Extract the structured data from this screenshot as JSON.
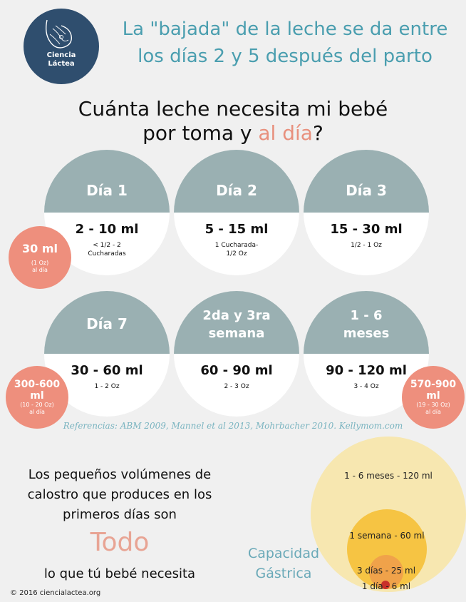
{
  "logo": {
    "line1": "Ciencia",
    "line2": "Láctea"
  },
  "headline": {
    "line1": "La \"bajada\" de la leche se da entre",
    "line2": "los días 2 y 5 después del parto"
  },
  "question": {
    "line1": "Cuánta leche necesita mi bebé",
    "line2_pre": "por toma y ",
    "line2_accent": "al día",
    "line2_post": "?"
  },
  "days": [
    {
      "label": "Día 1",
      "amount": "2 - 10 ml",
      "sub1": "< 1/2 - 2",
      "sub2": "Cucharadas"
    },
    {
      "label": "Día 2",
      "amount": "5 - 15 ml",
      "sub1": "1 Cucharada-",
      "sub2": "1/2 Oz"
    },
    {
      "label": "Día 3",
      "amount": "15 - 30 ml",
      "sub1": "1/2 - 1 Oz",
      "sub2": ""
    },
    {
      "label": "Día 7",
      "amount": "30 - 60 ml",
      "sub1": "1 - 2 Oz",
      "sub2": ""
    },
    {
      "label1": "2da y 3ra",
      "label2": "semana",
      "amount": "60 - 90 ml",
      "sub1": "2 - 3 Oz",
      "sub2": ""
    },
    {
      "label1": "1 - 6",
      "label2": "meses",
      "amount": "90 - 120 ml",
      "sub1": "3 - 4 Oz",
      "sub2": ""
    }
  ],
  "daily": [
    {
      "amount": "30 ml",
      "oz": "(1 Oz)",
      "unit": "al día"
    },
    {
      "amount1": "300-600",
      "amount2": "ml",
      "oz": "(10 - 20 Oz)",
      "unit": "al día"
    },
    {
      "amount1": "570-900",
      "amount2": "ml",
      "oz": "(19 - 30 Oz)",
      "unit": "al día"
    }
  ],
  "references": "Referencias: ABM 2009, Mannel et al 2013, Mohrbacher 2010. Kellymom.com",
  "calostro": {
    "line1": "Los pequeños volúmenes de",
    "line2": "calostro que produces en los",
    "line3": "primeros días son",
    "todo": "Todo",
    "line4": "lo que tú bebé necesita"
  },
  "capacidad": {
    "line1": "Capacidad",
    "line2": "Gástrica"
  },
  "gastric": [
    {
      "label": "1 - 6 meses - 120 ml",
      "color": "#f7e7b0"
    },
    {
      "label": "1 semana - 60 ml",
      "color": "#f6c443"
    },
    {
      "label": "3 días - 25 ml",
      "color": "#f0a24a"
    },
    {
      "label": "1 día - 6 ml",
      "color": "#c8302a"
    }
  ],
  "copyright": "© 2016 ciencialactea.org",
  "colors": {
    "teal": "#4a9eaf",
    "salmon": "#ee8f7d",
    "navy": "#2f4e6e",
    "cap_gray": "#9ab0b2"
  }
}
